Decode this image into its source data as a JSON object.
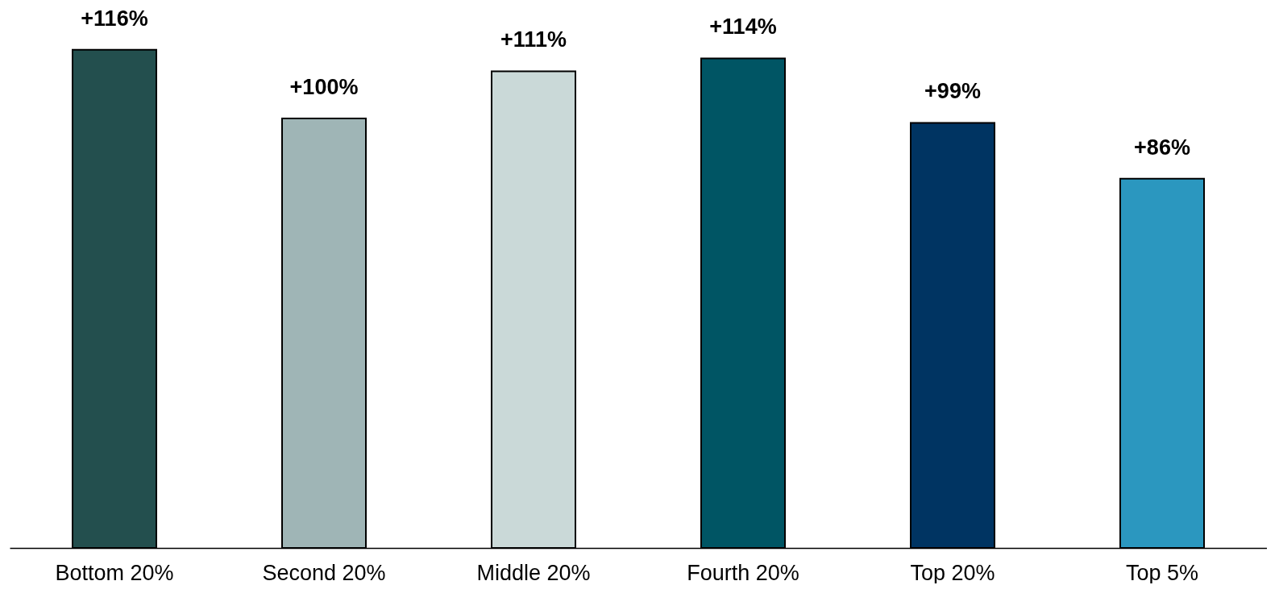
{
  "chart_data": {
    "type": "bar",
    "categories": [
      "Bottom 20%",
      "Second 20%",
      "Middle 20%",
      "Fourth 20%",
      "Top 20%",
      "Top 5%"
    ],
    "values": [
      116,
      100,
      111,
      114,
      99,
      86
    ],
    "colors": [
      "#234f4e",
      "#9fb5b6",
      "#cad9d8",
      "#005564",
      "#003462",
      "#2b97bf"
    ],
    "value_labels": [
      "+116%",
      "+100%",
      "+111%",
      "+114%",
      "+99%",
      "+86%"
    ],
    "tick_labels": "x"
  }
}
